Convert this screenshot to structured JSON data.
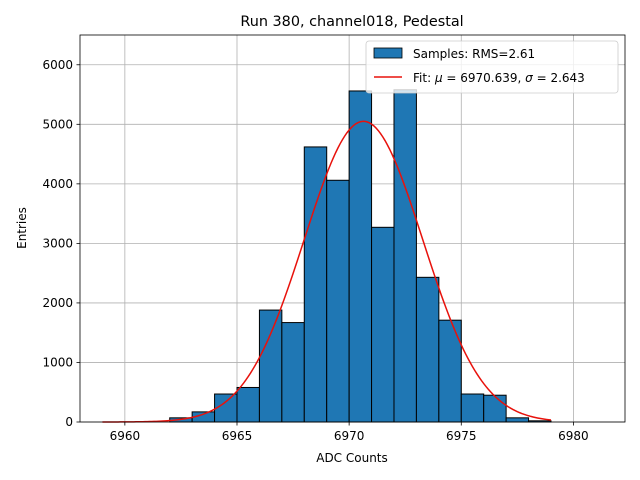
{
  "chart_data": {
    "type": "bar",
    "title": "Run 380, channel018, Pedestal",
    "xlabel": "ADC Counts",
    "ylabel": "Entries",
    "xlim": [
      6958,
      6982.3
    ],
    "ylim": [
      0,
      6500
    ],
    "xticks": [
      6960,
      6965,
      6970,
      6975,
      6980
    ],
    "yticks": [
      0,
      1000,
      2000,
      3000,
      4000,
      5000,
      6000
    ],
    "grid": true,
    "legend_position": "top-right",
    "bin_width": 1,
    "bins": [
      {
        "left": 6962,
        "count": 70
      },
      {
        "left": 6963,
        "count": 170
      },
      {
        "left": 6964,
        "count": 470
      },
      {
        "left": 6965,
        "count": 580
      },
      {
        "left": 6966,
        "count": 1880
      },
      {
        "left": 6967,
        "count": 1670
      },
      {
        "left": 6968,
        "count": 4620
      },
      {
        "left": 6969,
        "count": 4060
      },
      {
        "left": 6970,
        "count": 5560
      },
      {
        "left": 6971,
        "count": 3270
      },
      {
        "left": 6972,
        "count": 5580
      },
      {
        "left": 6973,
        "count": 2430
      },
      {
        "left": 6974,
        "count": 1710
      },
      {
        "left": 6975,
        "count": 470
      },
      {
        "left": 6976,
        "count": 450
      },
      {
        "left": 6977,
        "count": 70
      },
      {
        "left": 6978,
        "count": 20
      }
    ],
    "fit": {
      "mu": 6970.639,
      "sigma": 2.643,
      "amplitude": 5050,
      "x_range": [
        6959,
        6979
      ]
    },
    "series": [
      {
        "name": "histogram",
        "legend": "Samples: RMS=2.61",
        "color": "#1f77b4"
      },
      {
        "name": "fit",
        "legend_prefix": "Fit: ",
        "mu_symbol": "μ",
        "mu_text": " = 6970.639, ",
        "sigma_symbol": "σ",
        "sigma_text": " = 2.643",
        "color": "#e8120c"
      }
    ]
  }
}
